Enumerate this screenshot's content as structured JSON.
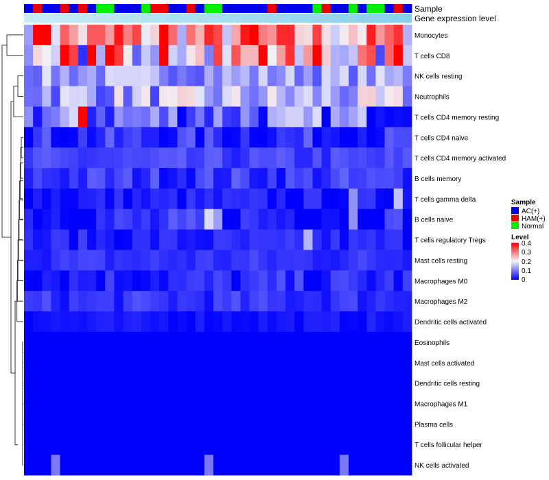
{
  "chart_data": {
    "type": "heatmap",
    "title": "",
    "annotation_rows": [
      "Sample",
      "Gene expression level"
    ],
    "sample_groups": [
      "A",
      "H",
      "A",
      "A",
      "H",
      "A",
      "H",
      "A",
      "N",
      "N",
      "A",
      "A",
      "A",
      "N",
      "H",
      "H",
      "A",
      "A",
      "H",
      "A",
      "N",
      "N",
      "A",
      "A",
      "A",
      "A",
      "A",
      "H",
      "A",
      "A",
      "A",
      "A",
      "N",
      "H",
      "A",
      "A",
      "N",
      "A",
      "N",
      "N",
      "A",
      "H",
      "A"
    ],
    "group_colors": {
      "A": "#0000ee",
      "H": "#ee0000",
      "N": "#00ee00"
    },
    "expression_bar_color": "#87ceeb",
    "expression_bar_left_color": "#c8ecf8",
    "rows": [
      "Monocytes",
      "T cells CD8",
      "NK cells resting",
      "Neutrophils",
      "T cells CD4 memory resting",
      "T cells CD4 naive",
      "T cells CD4 memory activated",
      "B cells memory",
      "T cells gamma delta",
      "B cells naive",
      "T cells regulatory  Tregs",
      "Mast cells resting",
      "Macrophages M0",
      "Macrophages M2",
      "Dendritic cells activated",
      "Eosinophils",
      "Mast cells activated",
      "Dendritic cells resting",
      "Macrophages M1",
      "Plasma cells",
      "T cells follicular helper",
      "NK cells activated"
    ],
    "row_base": [
      0.26,
      0.2,
      0.13,
      0.14,
      0.09,
      0.035,
      0.05,
      0.045,
      0.02,
      0.03,
      0.025,
      0.04,
      0.03,
      0.04,
      0.015,
      0.0,
      0.0,
      0.0,
      0.0,
      0.0,
      0.0,
      0.0
    ],
    "row_spread": [
      0.13,
      0.18,
      0.06,
      0.09,
      0.1,
      0.05,
      0.03,
      0.04,
      0.03,
      0.05,
      0.03,
      0.025,
      0.04,
      0.03,
      0.015,
      0.0,
      0.0,
      0.0,
      0.0,
      0.0,
      0.0,
      0.0
    ],
    "seed": 7,
    "fixed_cells": [
      [
        0,
        1,
        0.4
      ],
      [
        0,
        2,
        0.4
      ],
      [
        0,
        10,
        0.38
      ],
      [
        0,
        15,
        0.4
      ],
      [
        0,
        24,
        0.38
      ],
      [
        0,
        25,
        0.4
      ],
      [
        1,
        4,
        0.4
      ],
      [
        1,
        7,
        0.4
      ],
      [
        1,
        9,
        0.4
      ],
      [
        1,
        15,
        0.4
      ],
      [
        1,
        26,
        0.4
      ],
      [
        1,
        32,
        0.4
      ],
      [
        1,
        41,
        0.4
      ],
      [
        4,
        6,
        0.4
      ],
      [
        8,
        36,
        0.12
      ],
      [
        8,
        41,
        0.16
      ],
      [
        9,
        20,
        0.18
      ],
      [
        9,
        21,
        0.13
      ],
      [
        9,
        36,
        0.12
      ],
      [
        10,
        31,
        0.15
      ],
      [
        21,
        3,
        0.1
      ],
      [
        21,
        20,
        0.1
      ],
      [
        21,
        35,
        0.1
      ]
    ],
    "legend": {
      "sample_title": "Sample",
      "sample_entries": [
        "AC(+)",
        "HAM(+)",
        "Normal"
      ],
      "level_title": "Level",
      "level_ticks": [
        "0.4",
        "0.3",
        "0.2",
        "0.1",
        "0"
      ],
      "level_range": [
        0,
        0.4
      ],
      "color_low": "#0000ff",
      "color_mid": "#f2f2f8",
      "color_high": "#ff0000"
    },
    "dendrogram": "hierarchical clustering of rows (left side)"
  }
}
